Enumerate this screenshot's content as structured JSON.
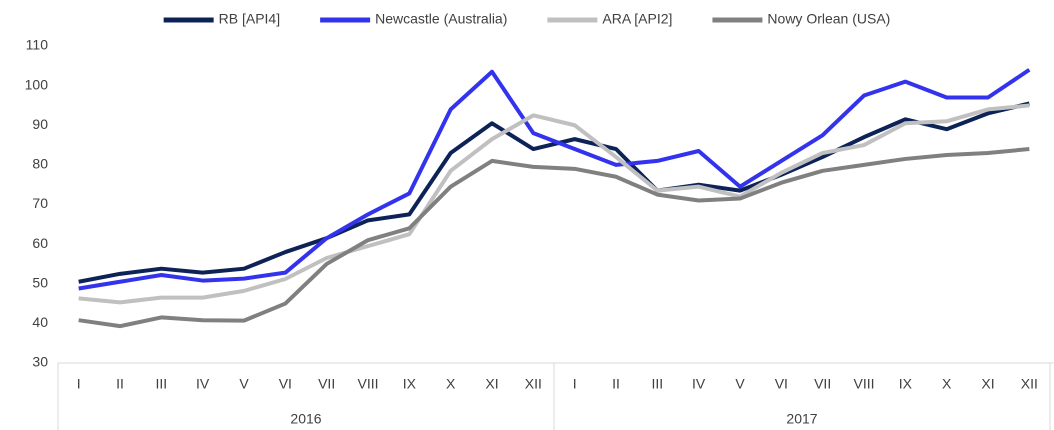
{
  "chart_data": {
    "type": "line",
    "categories": [
      "I",
      "II",
      "III",
      "IV",
      "V",
      "VI",
      "VII",
      "VIII",
      "IX",
      "X",
      "XI",
      "XII",
      "I",
      "II",
      "III",
      "IV",
      "V",
      "VI",
      "VII",
      "VIII",
      "IX",
      "X",
      "XI",
      "XII"
    ],
    "year_groups": [
      "2016",
      "2017"
    ],
    "series": [
      {
        "name": "RB [API4]",
        "color": "#0d2357",
        "values": [
          50.5,
          52.5,
          53.8,
          52.8,
          53.8,
          58,
          61.5,
          66,
          67.5,
          83,
          90.5,
          84,
          86.5,
          84,
          73.5,
          75,
          73.5,
          77.5,
          82,
          87,
          91.5,
          89,
          93,
          95.5
        ]
      },
      {
        "name": "Newcastle (Australia)",
        "color": "#3333ee",
        "values": [
          48.8,
          50.5,
          52.2,
          50.8,
          51.3,
          52.8,
          61.5,
          67.5,
          72.8,
          94,
          103.5,
          88,
          84,
          80,
          81,
          83.5,
          74.5,
          81,
          87.5,
          97.5,
          101,
          97,
          97,
          104
        ]
      },
      {
        "name": "ARA [API2]",
        "color": "#c0c0c0",
        "values": [
          46.3,
          45.3,
          46.5,
          46.5,
          48.2,
          51.2,
          56.5,
          59.5,
          62.5,
          78.5,
          86.5,
          92.5,
          90,
          82,
          73.5,
          74.5,
          72,
          78,
          83,
          85,
          90.5,
          91,
          94,
          95
        ]
      },
      {
        "name": "Nowy Orlean (USA)",
        "color": "#808080",
        "values": [
          40.8,
          39.3,
          41.5,
          40.8,
          40.7,
          45,
          55,
          61,
          64,
          74.5,
          81,
          79.5,
          79,
          77,
          72.5,
          71,
          71.5,
          75.5,
          78.5,
          80,
          81.5,
          82.5,
          83,
          84
        ]
      }
    ],
    "ylim": [
      30,
      110
    ],
    "yticks": [
      30,
      40,
      50,
      60,
      70,
      80,
      90,
      100,
      110
    ],
    "legend": "top"
  }
}
